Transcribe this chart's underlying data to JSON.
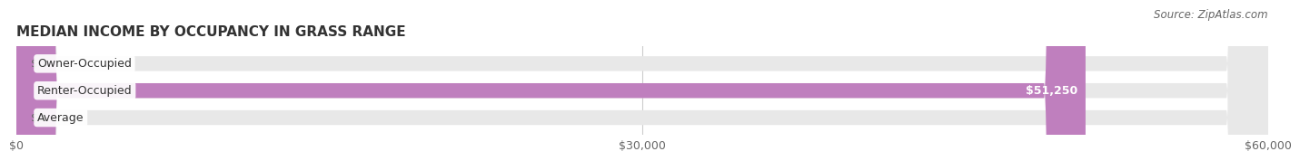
{
  "title": "MEDIAN INCOME BY OCCUPANCY IN GRASS RANGE",
  "source_text": "Source: ZipAtlas.com",
  "categories": [
    "Owner-Occupied",
    "Renter-Occupied",
    "Average"
  ],
  "values": [
    0,
    51250,
    0
  ],
  "bar_colors": [
    "#7dd4d8",
    "#bf7fbe",
    "#f5c8a0"
  ],
  "bar_labels": [
    "$0",
    "$51,250",
    "$0"
  ],
  "xlim": [
    0,
    60000
  ],
  "xticks": [
    0,
    30000,
    60000
  ],
  "xtick_labels": [
    "$0",
    "$30,000",
    "$60,000"
  ],
  "background_color": "#ffffff",
  "bar_bg_color": "#e8e8e8",
  "title_fontsize": 11,
  "label_fontsize": 9,
  "source_fontsize": 8.5
}
